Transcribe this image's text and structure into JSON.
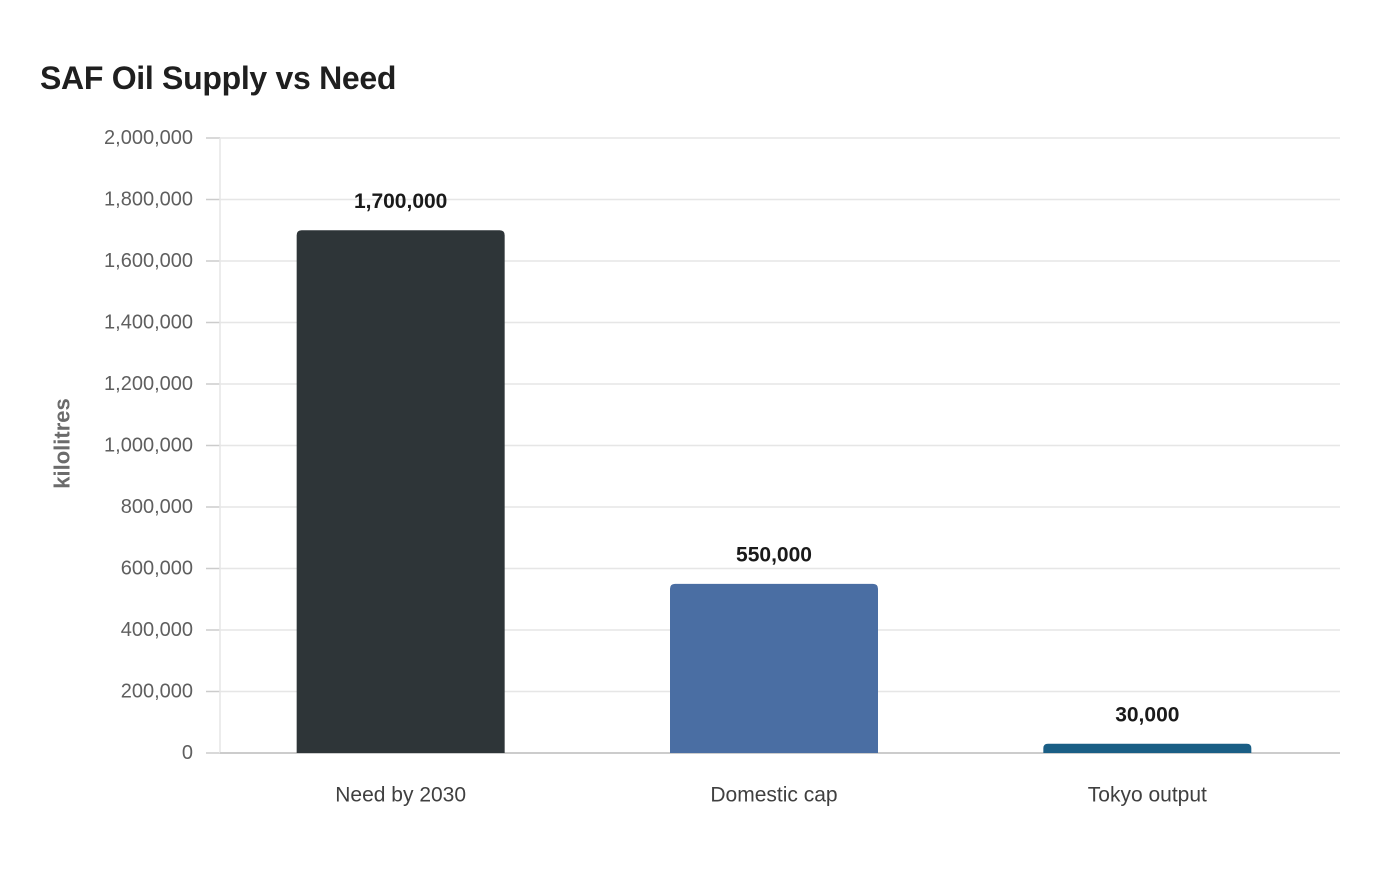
{
  "chart_data": {
    "type": "bar",
    "title": "SAF Oil Supply vs Need",
    "xlabel": "",
    "ylabel": "kilolitres",
    "categories": [
      "Need by 2030",
      "Domestic cap",
      "Tokyo output"
    ],
    "values": [
      1700000,
      550000,
      30000
    ],
    "value_labels": [
      "1,700,000",
      "550,000",
      "30,000"
    ],
    "colors": [
      "#2e3538",
      "#4a6ea3",
      "#1a5e85"
    ],
    "ylim": [
      0,
      2000000
    ],
    "yticks": [
      0,
      200000,
      400000,
      600000,
      800000,
      1000000,
      1200000,
      1400000,
      1600000,
      1800000,
      2000000
    ],
    "ytick_labels": [
      "0",
      "200,000",
      "400,000",
      "600,000",
      "800,000",
      "1,000,000",
      "1,200,000",
      "1,400,000",
      "1,600,000",
      "1,800,000",
      "2,000,000"
    ],
    "grid": true,
    "gridline_color": "#e6e6e6",
    "axis_color": "#cccccc"
  }
}
